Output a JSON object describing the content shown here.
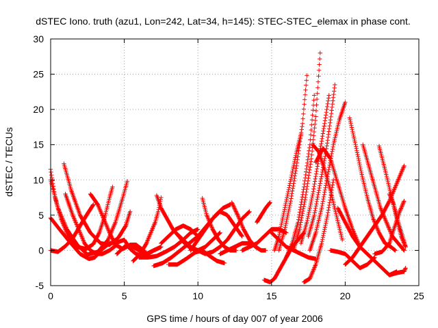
{
  "chart_data": {
    "type": "scatter",
    "title": "dSTEC Iono. truth (azu1, Lon=242, Lat=34, h=145): STEC-STEC_elemax in phase cont.",
    "xlabel": "GPS time / hours of day 007 of year 2006",
    "ylabel": "dSTEC  / TECUs",
    "xlim": [
      0,
      25
    ],
    "ylim": [
      -5,
      30
    ],
    "x_ticks": [
      0,
      5,
      10,
      15,
      20,
      25
    ],
    "y_ticks": [
      -5,
      0,
      5,
      10,
      15,
      20,
      25,
      30
    ],
    "grid": true,
    "grid_style": "dotted",
    "marker": "plus",
    "series_color": "#ff0000",
    "series": [
      {
        "x": [
          0,
          0.3,
          0.7,
          1.2,
          1.8,
          2.4,
          2.9,
          3.3,
          3.7,
          4.0,
          4.2
        ],
        "values": [
          11.5,
          7.5,
          4.5,
          2.0,
          0.5,
          0.2,
          0.9,
          2.5,
          5.0,
          7.5,
          9.0
        ]
      },
      {
        "x": [
          0,
          0.5,
          1.1,
          1.8,
          2.5,
          3.2,
          3.9,
          4.4,
          4.9,
          5.2
        ],
        "values": [
          10.0,
          6.0,
          3.0,
          0.8,
          -0.6,
          -0.2,
          1.5,
          4.0,
          7.5,
          9.8
        ]
      },
      {
        "x": [
          0,
          0.6,
          1.3,
          2.0,
          2.6,
          3.0,
          3.5,
          4.0,
          4.6,
          5.0
        ],
        "values": [
          4.6,
          3.0,
          1.2,
          -0.5,
          -1.2,
          -1.0,
          0.2,
          1.0,
          1.2,
          1.5
        ]
      },
      {
        "x": [
          0.9,
          1.4,
          2.0,
          2.7,
          3.4,
          4.0,
          4.6,
          5.1,
          5.4
        ],
        "values": [
          12.3,
          8.5,
          5.0,
          2.5,
          1.0,
          0.8,
          1.8,
          3.5,
          5.5
        ]
      },
      {
        "x": [
          1.0,
          1.5,
          2.0,
          2.3,
          2.7,
          3.1,
          3.5,
          4.0,
          4.5
        ],
        "values": [
          8.0,
          5.0,
          2.5,
          1.0,
          0.0,
          -0.5,
          -0.5,
          0.0,
          0.8
        ]
      },
      {
        "x": [
          0,
          0.5,
          1.0,
          1.5,
          2.0,
          2.5,
          2.9
        ],
        "values": [
          0.0,
          -0.2,
          0.6,
          1.7,
          3.5,
          5.2,
          6.5
        ]
      },
      {
        "x": [
          2.7,
          3.2,
          3.6,
          4.0,
          4.4,
          4.9,
          5.4,
          5.8,
          6.3,
          6.7
        ],
        "values": [
          8.0,
          6.5,
          4.5,
          2.5,
          0.8,
          0.2,
          0.8,
          0.8,
          0.0,
          -0.8
        ]
      },
      {
        "x": [
          4.5,
          5.0,
          5.5,
          6.0,
          6.5,
          7.0,
          7.5
        ],
        "values": [
          -0.5,
          0.5,
          0.6,
          0.0,
          -0.5,
          0.0,
          0.5
        ]
      },
      {
        "x": [
          5.0,
          5.4,
          5.8,
          6.2,
          6.6,
          7.0,
          7.4
        ],
        "values": [
          1.5,
          0.2,
          -0.5,
          -0.8,
          -0.5,
          0.0,
          0.4
        ]
      },
      {
        "x": [
          5.6,
          6.1,
          6.5,
          6.8,
          7.1,
          7.3,
          7.5
        ],
        "values": [
          -1.5,
          -0.5,
          1.0,
          2.5,
          4.0,
          5.5,
          7.5
        ]
      },
      {
        "x": [
          6.0,
          6.6,
          7.2,
          7.8,
          8.4,
          9.0,
          9.5,
          10.0
        ],
        "values": [
          -1.0,
          -1.0,
          -0.8,
          -0.2,
          0.5,
          1.5,
          2.5,
          3.0
        ]
      },
      {
        "x": [
          7.0,
          7.6,
          8.2,
          8.8,
          9.4,
          10.0,
          10.6,
          11.2,
          11.7,
          12.2
        ],
        "values": [
          -2.2,
          -1.8,
          -1.0,
          0.0,
          1.0,
          2.0,
          3.5,
          5.0,
          6.0,
          6.5
        ]
      },
      {
        "x": [
          8.0,
          8.6,
          9.2,
          9.8,
          10.3,
          10.8,
          11.3,
          11.8
        ],
        "values": [
          -2.0,
          -2.0,
          -1.2,
          -0.3,
          0.0,
          -0.8,
          -1.5,
          -1.8
        ]
      },
      {
        "x": [
          7.2,
          7.5,
          7.9,
          8.3,
          8.7,
          9.1,
          9.5,
          9.9
        ],
        "values": [
          7.8,
          6.0,
          4.5,
          3.0,
          2.0,
          1.0,
          0.3,
          0.0
        ]
      },
      {
        "x": [
          7.5,
          8.0,
          8.5,
          9.0,
          9.5,
          10.0
        ],
        "values": [
          1.0,
          2.0,
          3.0,
          3.5,
          3.0,
          2.0
        ]
      },
      {
        "x": [
          8.5,
          9.0,
          9.5,
          10.0,
          10.5,
          11.0,
          11.5
        ],
        "values": [
          2.5,
          1.5,
          0.5,
          0.0,
          0.5,
          1.5,
          2.5
        ]
      },
      {
        "x": [
          9.5,
          10.0,
          10.5,
          11.0,
          11.5,
          12.0,
          12.5,
          13.0
        ],
        "values": [
          0.0,
          1.5,
          3.0,
          4.5,
          5.5,
          5.0,
          3.5,
          2.0
        ]
      },
      {
        "x": [
          10.3,
          10.6,
          11.0,
          11.4,
          11.8,
          12.2,
          12.6
        ],
        "values": [
          7.4,
          5.0,
          3.0,
          1.5,
          0.5,
          0.0,
          0.0
        ]
      },
      {
        "x": [
          10.0,
          10.5,
          11.0,
          11.5,
          12.0,
          12.5,
          13.0,
          13.5
        ],
        "values": [
          0.0,
          -0.5,
          -0.2,
          0.5,
          1.5,
          3.0,
          4.5,
          5.5
        ]
      },
      {
        "x": [
          11.5,
          12.0,
          12.5,
          13.0,
          13.5,
          14.0
        ],
        "values": [
          -0.5,
          0.0,
          0.5,
          1.0,
          1.0,
          0.5
        ]
      },
      {
        "x": [
          12.3,
          12.7,
          13.1,
          13.5,
          13.9,
          14.3,
          14.6
        ],
        "values": [
          6.8,
          5.0,
          3.0,
          1.5,
          0.5,
          0.0,
          0.0
        ]
      },
      {
        "x": [
          13.0,
          13.5,
          14.0,
          14.5,
          15.0,
          15.5,
          16.0
        ],
        "values": [
          0.0,
          0.5,
          1.0,
          2.0,
          3.0,
          3.0,
          2.5
        ]
      },
      {
        "x": [
          14.0,
          14.3,
          14.6,
          14.9
        ],
        "values": [
          4.0,
          5.0,
          6.0,
          6.8
        ]
      },
      {
        "x": [
          14.5,
          14.9,
          15.2,
          15.6,
          16.0,
          16.4,
          16.8,
          17.2
        ],
        "values": [
          -4.2,
          -4.5,
          -4.0,
          -2.5,
          -1.0,
          0.5,
          1.5,
          2.5
        ]
      },
      {
        "x": [
          15.2,
          15.5,
          15.8,
          16.1,
          16.4,
          16.7,
          17.0
        ],
        "values": [
          0.0,
          2.0,
          5.0,
          8.0,
          11.0,
          14.0,
          16.5
        ]
      },
      {
        "x": [
          15.0,
          15.5,
          16.0,
          16.5,
          17.0,
          17.5,
          18.0
        ],
        "values": [
          2.5,
          1.5,
          0.5,
          0.0,
          -0.5,
          -1.0,
          -1.2
        ]
      },
      {
        "x": [
          15.5,
          15.9,
          16.3,
          16.7,
          17.1,
          17.4
        ],
        "values": [
          0.0,
          3.0,
          7.0,
          12.0,
          18.0,
          24.8
        ]
      },
      {
        "x": [
          16.0,
          16.4,
          16.8,
          17.2,
          17.6,
          17.9
        ],
        "values": [
          -1.0,
          1.0,
          4.0,
          9.0,
          15.0,
          22.0
        ]
      },
      {
        "x": [
          16.5,
          16.9,
          17.3,
          17.7,
          18.0,
          18.3
        ],
        "values": [
          0.0,
          3.0,
          7.5,
          13.0,
          19.0,
          28.0
        ]
      },
      {
        "x": [
          17.0,
          17.4,
          17.8,
          18.2,
          18.6,
          18.9
        ],
        "values": [
          1.0,
          4.0,
          8.0,
          13.0,
          18.0,
          22.0
        ]
      },
      {
        "x": [
          17.2,
          17.6,
          18.0,
          18.4,
          18.8,
          19.2
        ],
        "values": [
          -4.5,
          -4.0,
          -2.0,
          1.0,
          5.0,
          10.0
        ]
      },
      {
        "x": [
          17.5,
          17.9,
          18.3,
          18.7,
          19.0,
          19.3
        ],
        "values": [
          2.0,
          5.0,
          9.5,
          14.0,
          18.5,
          23.5
        ]
      },
      {
        "x": [
          17.6,
          18.0,
          18.4,
          18.8,
          19.2,
          19.6,
          20.0
        ],
        "values": [
          0.0,
          2.5,
          6.0,
          10.5,
          15.0,
          18.5,
          21.0
        ]
      },
      {
        "x": [
          17.8,
          18.2,
          18.6,
          19.0,
          19.4,
          19.8
        ],
        "values": [
          15.0,
          14.0,
          11.5,
          8.5,
          5.0,
          1.5
        ]
      },
      {
        "x": [
          18.0,
          18.5,
          19.0,
          19.5,
          20.0,
          20.5,
          21.0
        ],
        "values": [
          12.5,
          14.5,
          13.0,
          9.5,
          6.0,
          3.0,
          0.5
        ]
      },
      {
        "x": [
          19.5,
          20.0,
          20.5,
          21.0,
          21.5,
          22.0,
          22.5,
          23.0,
          23.5
        ],
        "values": [
          6.0,
          4.0,
          2.0,
          0.5,
          -0.5,
          -1.5,
          -2.5,
          -3.5,
          -3.0
        ]
      },
      {
        "x": [
          19.0,
          19.5,
          20.0,
          20.5,
          21.0,
          21.5,
          22.0
        ],
        "values": [
          0.0,
          -0.2,
          -0.5,
          -1.5,
          -2.5,
          -2.0,
          -1.0
        ]
      },
      {
        "x": [
          20.0,
          20.5,
          21.0,
          21.5,
          22.0,
          22.5,
          23.0,
          23.5,
          24.0
        ],
        "values": [
          -2.0,
          -1.0,
          0.5,
          2.0,
          3.5,
          5.0,
          7.0,
          9.5,
          12.0
        ]
      },
      {
        "x": [
          20.3,
          20.7,
          21.1,
          21.5,
          21.9,
          22.3,
          22.7,
          23.1,
          23.4
        ],
        "values": [
          18.8,
          15.0,
          11.0,
          7.5,
          4.5,
          2.5,
          1.0,
          0.5,
          0.0
        ]
      },
      {
        "x": [
          21.2,
          21.6,
          22.0,
          22.4,
          22.8,
          23.2,
          23.6,
          24.0
        ],
        "values": [
          15.0,
          12.0,
          9.0,
          6.0,
          4.0,
          2.0,
          1.0,
          0.0
        ]
      },
      {
        "x": [
          22.3,
          22.7,
          23.1,
          23.5,
          23.8,
          24.1
        ],
        "values": [
          14.8,
          11.5,
          8.0,
          4.5,
          2.0,
          0.5
        ]
      },
      {
        "x": [
          22.0,
          22.5,
          23.0,
          23.3,
          23.7,
          24.0
        ],
        "values": [
          -0.5,
          -0.2,
          1.0,
          3.0,
          5.5,
          7.0
        ]
      },
      {
        "x": [
          23.0,
          23.3,
          23.6,
          23.9,
          24.1
        ],
        "values": [
          8.0,
          6.5,
          4.0,
          2.0,
          0.5
        ]
      },
      {
        "x": [
          23.0,
          23.5,
          24.0,
          24.1
        ],
        "values": [
          -3.5,
          -3.2,
          -3.0,
          -2.5
        ]
      }
    ]
  }
}
